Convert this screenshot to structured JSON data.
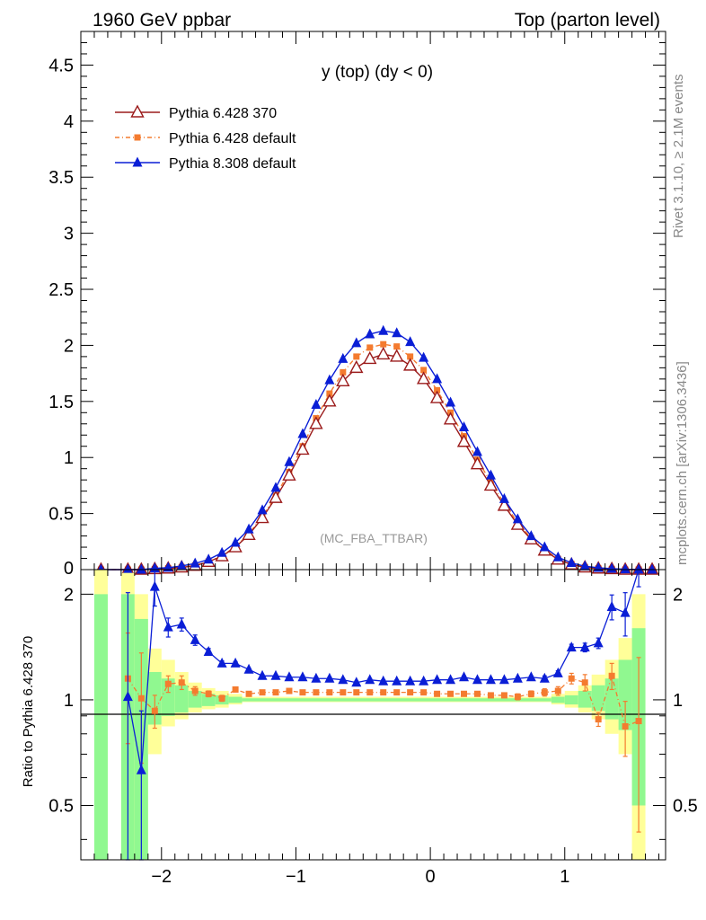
{
  "header": {
    "left": "1960 GeV ppbar",
    "right": "Top (parton level)"
  },
  "side_labels": {
    "rivet": "Rivet 3.1.10, ≥ 2.1M events",
    "mcplots": "mcplots.cern.ch [arXiv:1306.3436]"
  },
  "colors": {
    "p6_370": "#9b1b1b",
    "p6_default": "#f47b2f",
    "p8_default": "#0a1ed6",
    "band_green": "#90f890",
    "band_yellow": "#ffff99"
  },
  "chart_data": [
    {
      "type": "line",
      "panel": "main",
      "title": "y (top) (dy < 0)",
      "watermark": "(MC_FBA_TTBAR)",
      "ylim": [
        0,
        4.8
      ],
      "xlim": [
        -2.6,
        1.75
      ],
      "yticks": [
        0,
        0.5,
        1,
        1.5,
        2,
        2.5,
        3,
        3.5,
        4,
        4.5
      ],
      "ytick_labels": [
        "0",
        "0.5",
        "1",
        "1.5",
        "2",
        "2.5",
        "3",
        "3.5",
        "4",
        "4.5"
      ],
      "legend_position": "top-left",
      "x": [
        -2.45,
        -2.25,
        -2.15,
        -2.05,
        -1.95,
        -1.85,
        -1.75,
        -1.65,
        -1.55,
        -1.45,
        -1.35,
        -1.25,
        -1.15,
        -1.05,
        -0.95,
        -0.85,
        -0.75,
        -0.65,
        -0.55,
        -0.45,
        -0.35,
        -0.25,
        -0.15,
        -0.05,
        0.05,
        0.15,
        0.25,
        0.35,
        0.45,
        0.55,
        0.65,
        0.75,
        0.85,
        0.95,
        1.05,
        1.15,
        1.25,
        1.35,
        1.45,
        1.55,
        1.65
      ],
      "series": [
        {
          "name": "Pythia 6.428 370",
          "color_key": "p6_370",
          "marker": "open-triangle",
          "values": [
            0.0,
            0.0,
            0.0,
            0.005,
            0.01,
            0.02,
            0.035,
            0.07,
            0.12,
            0.2,
            0.31,
            0.46,
            0.64,
            0.84,
            1.07,
            1.3,
            1.5,
            1.68,
            1.8,
            1.88,
            1.92,
            1.9,
            1.82,
            1.7,
            1.53,
            1.34,
            1.14,
            0.94,
            0.75,
            0.57,
            0.4,
            0.27,
            0.17,
            0.09,
            0.045,
            0.02,
            0.01,
            0.005,
            0.0,
            0.0,
            0.0
          ]
        },
        {
          "name": "Pythia 6.428 default",
          "color_key": "p6_default",
          "marker": "filled-square",
          "values": [
            0.0,
            0.0,
            0.0,
            0.005,
            0.011,
            0.022,
            0.037,
            0.072,
            0.121,
            0.206,
            0.32,
            0.474,
            0.66,
            0.87,
            1.1,
            1.35,
            1.57,
            1.76,
            1.9,
            1.98,
            2.01,
            1.99,
            1.9,
            1.78,
            1.6,
            1.4,
            1.19,
            0.98,
            0.78,
            0.59,
            0.42,
            0.28,
            0.18,
            0.095,
            0.05,
            0.022,
            0.01,
            0.005,
            0.0,
            0.0,
            0.0
          ]
        },
        {
          "name": "Pythia 8.308 default",
          "color_key": "p8_default",
          "marker": "filled-triangle",
          "values": [
            0.0,
            0.0,
            0.0,
            0.011,
            0.017,
            0.033,
            0.055,
            0.09,
            0.15,
            0.24,
            0.36,
            0.53,
            0.73,
            0.96,
            1.21,
            1.47,
            1.69,
            1.88,
            2.02,
            2.1,
            2.13,
            2.11,
            2.03,
            1.89,
            1.7,
            1.49,
            1.27,
            1.05,
            0.84,
            0.63,
            0.45,
            0.3,
            0.2,
            0.11,
            0.06,
            0.03,
            0.016,
            0.008,
            0.003,
            0.001,
            0.0
          ]
        }
      ]
    },
    {
      "type": "line",
      "panel": "ratio",
      "ylabel": "Ratio to Pythia 6.428 370",
      "ylim": [
        0.35,
        2.35
      ],
      "xlim": [
        -2.6,
        1.75
      ],
      "yticks": [
        0.5,
        1,
        2
      ],
      "ytick_labels": [
        "0.5",
        "1",
        "2"
      ],
      "xticks": [
        -2,
        -1,
        0,
        1
      ],
      "xtick_labels": [
        "−2",
        "−1",
        "0",
        "1"
      ],
      "bands": [
        {
          "x0": -2.5,
          "x1": -2.4,
          "green": [
            0.3,
            2.0
          ],
          "yellow": [
            0.3,
            2.4
          ]
        },
        {
          "x0": -2.3,
          "x1": -2.2,
          "green": [
            0.3,
            2.0
          ],
          "yellow": [
            0.3,
            2.3
          ]
        },
        {
          "x0": -2.2,
          "x1": -2.1,
          "green": [
            0.3,
            1.7
          ],
          "yellow": [
            0.3,
            2.0
          ]
        },
        {
          "x0": -2.1,
          "x1": -2.0,
          "green": [
            0.85,
            1.2
          ],
          "yellow": [
            0.7,
            1.4
          ]
        },
        {
          "x0": -2.0,
          "x1": -1.9,
          "green": [
            0.9,
            1.15
          ],
          "yellow": [
            0.84,
            1.3
          ]
        },
        {
          "x0": -1.9,
          "x1": -1.8,
          "green": [
            0.92,
            1.1
          ],
          "yellow": [
            0.88,
            1.2
          ]
        },
        {
          "x0": -1.8,
          "x1": -1.7,
          "green": [
            0.95,
            1.06
          ],
          "yellow": [
            0.92,
            1.12
          ]
        },
        {
          "x0": -1.7,
          "x1": -1.6,
          "green": [
            0.96,
            1.04
          ],
          "yellow": [
            0.94,
            1.08
          ]
        },
        {
          "x0": -1.6,
          "x1": -1.5,
          "green": [
            0.97,
            1.03
          ],
          "yellow": [
            0.95,
            1.06
          ]
        },
        {
          "x0": -1.5,
          "x1": -1.4,
          "green": [
            0.98,
            1.02
          ],
          "yellow": [
            0.97,
            1.04
          ]
        },
        {
          "x0": -1.4,
          "x1": 0.9,
          "green": [
            0.99,
            1.01
          ],
          "yellow": [
            0.985,
            1.02
          ]
        },
        {
          "x0": 0.9,
          "x1": 1.0,
          "green": [
            0.98,
            1.02
          ],
          "yellow": [
            0.97,
            1.04
          ]
        },
        {
          "x0": 1.0,
          "x1": 1.1,
          "green": [
            0.97,
            1.03
          ],
          "yellow": [
            0.95,
            1.06
          ]
        },
        {
          "x0": 1.1,
          "x1": 1.2,
          "green": [
            0.95,
            1.06
          ],
          "yellow": [
            0.92,
            1.1
          ]
        },
        {
          "x0": 1.2,
          "x1": 1.3,
          "green": [
            0.93,
            1.1
          ],
          "yellow": [
            0.88,
            1.18
          ]
        },
        {
          "x0": 1.3,
          "x1": 1.4,
          "green": [
            0.88,
            1.15
          ],
          "yellow": [
            0.8,
            1.3
          ]
        },
        {
          "x0": 1.4,
          "x1": 1.5,
          "green": [
            0.82,
            1.3
          ],
          "yellow": [
            0.7,
            1.5
          ]
        },
        {
          "x0": 1.5,
          "x1": 1.6,
          "green": [
            0.5,
            1.6
          ],
          "yellow": [
            0.3,
            2.0
          ]
        }
      ],
      "series": [
        {
          "name": "Pythia 6.428 default",
          "color_key": "p6_default",
          "marker": "filled-square",
          "x": [
            -2.25,
            -2.15,
            -2.05,
            -1.95,
            -1.85,
            -1.75,
            -1.65,
            -1.55,
            -1.45,
            -1.35,
            -1.25,
            -1.15,
            -1.05,
            -0.95,
            -0.85,
            -0.75,
            -0.65,
            -0.55,
            -0.45,
            -0.35,
            -0.25,
            -0.15,
            -0.05,
            0.05,
            0.15,
            0.25,
            0.35,
            0.45,
            0.55,
            0.65,
            0.75,
            0.85,
            0.95,
            1.05,
            1.15,
            1.25,
            1.35,
            1.45,
            1.55
          ],
          "values": [
            1.15,
            1.01,
            0.93,
            1.11,
            1.12,
            1.06,
            1.04,
            1.01,
            1.07,
            1.04,
            1.05,
            1.05,
            1.06,
            1.05,
            1.05,
            1.05,
            1.05,
            1.05,
            1.05,
            1.05,
            1.05,
            1.05,
            1.05,
            1.04,
            1.04,
            1.04,
            1.04,
            1.03,
            1.03,
            1.02,
            1.04,
            1.05,
            1.06,
            1.15,
            1.12,
            0.88,
            1.17,
            0.84,
            0.87
          ],
          "err": [
            0.4,
            0.35,
            0.1,
            0.06,
            0.05,
            0.03,
            0.02,
            0.02,
            0.015,
            0.01,
            0.01,
            0.01,
            0.01,
            0.01,
            0.01,
            0.01,
            0.01,
            0.01,
            0.01,
            0.01,
            0.01,
            0.01,
            0.01,
            0.01,
            0.01,
            0.01,
            0.01,
            0.01,
            0.015,
            0.02,
            0.02,
            0.025,
            0.03,
            0.04,
            0.06,
            0.04,
            0.1,
            0.15,
            0.45
          ]
        },
        {
          "name": "Pythia 8.308 default",
          "color_key": "p8_default",
          "marker": "filled-triangle",
          "x": [
            -2.25,
            -2.15,
            -2.05,
            -1.95,
            -1.85,
            -1.75,
            -1.65,
            -1.55,
            -1.45,
            -1.35,
            -1.25,
            -1.15,
            -1.05,
            -0.95,
            -0.85,
            -0.75,
            -0.65,
            -0.55,
            -0.45,
            -0.35,
            -0.25,
            -0.15,
            -0.05,
            0.05,
            0.15,
            0.25,
            0.35,
            0.45,
            0.55,
            0.65,
            0.75,
            0.85,
            0.95,
            1.05,
            1.15,
            1.25,
            1.35,
            1.45,
            1.55
          ],
          "values": [
            1.02,
            0.63,
            2.1,
            1.61,
            1.64,
            1.48,
            1.37,
            1.27,
            1.27,
            1.22,
            1.17,
            1.17,
            1.16,
            1.16,
            1.15,
            1.15,
            1.14,
            1.12,
            1.14,
            1.13,
            1.13,
            1.13,
            1.13,
            1.14,
            1.14,
            1.16,
            1.14,
            1.14,
            1.14,
            1.15,
            1.16,
            1.15,
            1.19,
            1.41,
            1.41,
            1.45,
            1.84,
            1.77,
            2.4
          ],
          "err": [
            1.0,
            0.3,
            0.25,
            0.1,
            0.07,
            0.05,
            0.03,
            0.02,
            0.015,
            0.01,
            0.01,
            0.01,
            0.01,
            0.01,
            0.01,
            0.01,
            0.01,
            0.01,
            0.01,
            0.01,
            0.01,
            0.01,
            0.01,
            0.01,
            0.01,
            0.01,
            0.01,
            0.01,
            0.01,
            0.01,
            0.01,
            0.02,
            0.02,
            0.03,
            0.04,
            0.05,
            0.15,
            0.25,
            0.3
          ]
        }
      ]
    }
  ]
}
